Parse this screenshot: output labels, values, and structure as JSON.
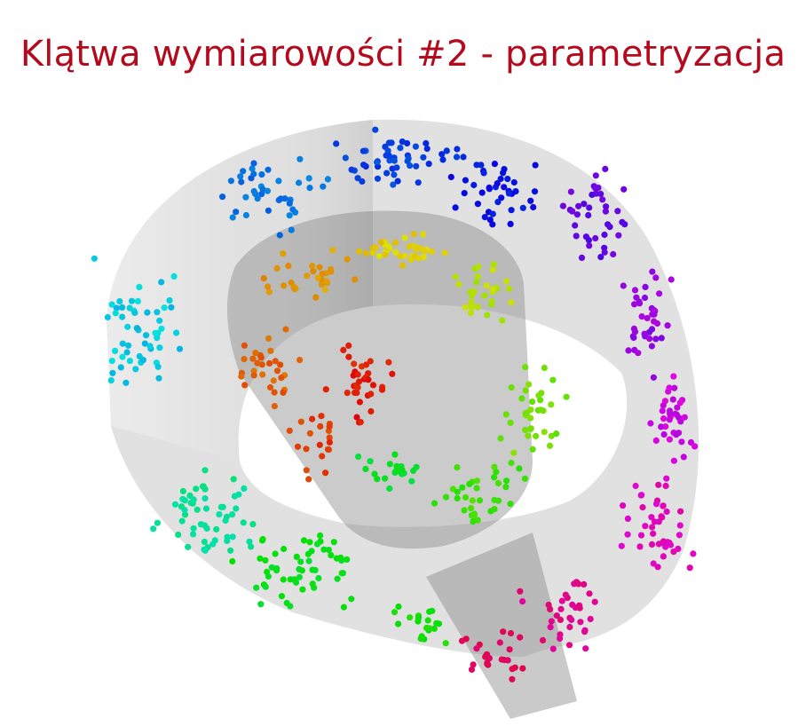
{
  "slide": {
    "title": "Klątwa wymiarowości #2 - parametryzacja",
    "title_color": "#b40a1e"
  },
  "figure": {
    "surface_color": "#9a9a9a",
    "point_palette": "rainbow (hue varies along the surface parametrization)"
  }
}
